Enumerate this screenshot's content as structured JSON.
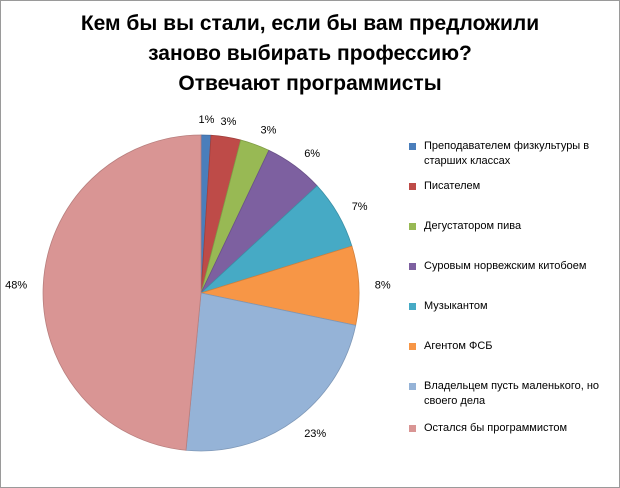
{
  "chart_data": {
    "type": "pie",
    "title_lines": [
      "Кем бы вы стали, если бы вам предложили",
      "заново выбирать профессию?",
      "Отвечают программисты"
    ],
    "categories": [
      "Преподавателем физкультуры в старших классах",
      "Писателем",
      "Дегустатором пива",
      "Суровым норвежским китобоем",
      "Музыкантом",
      "Агентом ФСБ",
      "Владельцем пусть маленького, но своего дела",
      "Остался бы программистом"
    ],
    "values": [
      1,
      3,
      3,
      6,
      7,
      8,
      23,
      48
    ],
    "data_labels": [
      "1%",
      "3%",
      "3%",
      "6%",
      "7%",
      "8%",
      "23%",
      "48%"
    ],
    "colors": [
      "#4a7ebb",
      "#be4b48",
      "#98b954",
      "#7d60a0",
      "#46aac5",
      "#f79646",
      "#95b3d7",
      "#d99594"
    ],
    "legend_position": "right"
  }
}
